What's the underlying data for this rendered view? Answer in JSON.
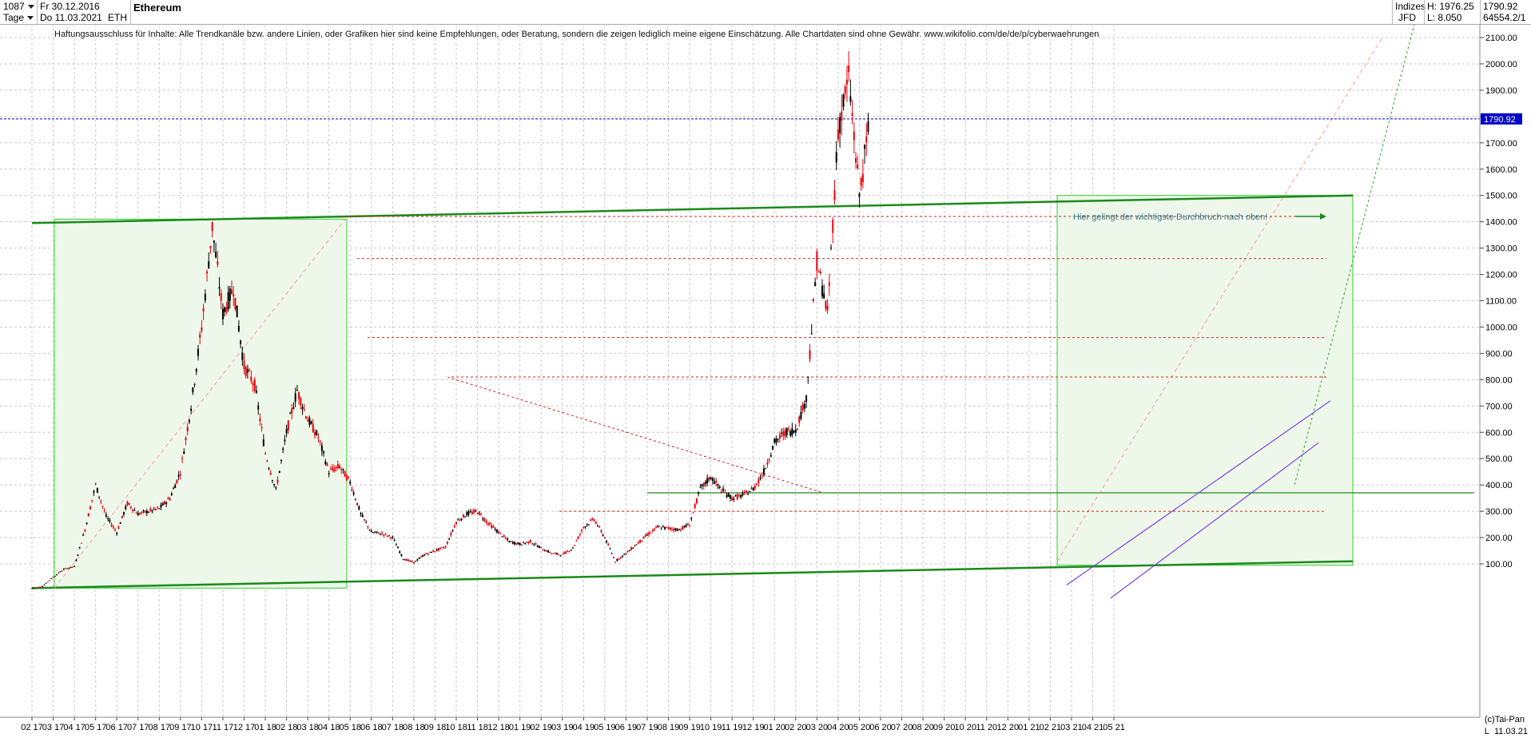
{
  "header": {
    "bar_count": "1087",
    "period": "Tage",
    "date_from": "Fr 30.12.2016",
    "date_to": "Do 11.03.2021",
    "symbol": "ETH",
    "title": "Ethereum",
    "market": "Indizes",
    "source": "JFD",
    "high_label": "H: 1976.25",
    "low_label": "L: 8.050",
    "last_value": "1790.92",
    "extra_value": "64554.2/1"
  },
  "disclaimer": "Haftungsausschluss für Inhalte: Alle Trendkanäle bzw. andere Linien, oder Grafiken hier sind keine Empfehlungen, oder Beratung, sondern die zeigen lediglich meine eigene Einschätzung. Alle Chartdaten sind ohne Gewähr.  www.wikifolio.com/de/de/p/cyberwaehrungen",
  "annotation": "Hier gelingt der wichtigste Durchbruch nach oben!",
  "watermark": "(c)Tai-Pan",
  "last_date_label": "11.03.21",
  "axis_end_label": "L",
  "colors": {
    "candle_up": "#000000",
    "candle_down": "#e8000b",
    "trend_green": "#1a8a1a",
    "support_red": "#d42020",
    "price_line": "#0000cc",
    "channel_purple": "#7b3fe0",
    "box_fill": "#eef8ea"
  },
  "chart_data": {
    "type": "candlestick",
    "title": "Ethereum",
    "ylim": [
      0,
      2150
    ],
    "y_ticks": [
      100,
      200,
      300,
      400,
      500,
      600,
      700,
      800,
      900,
      1000,
      1100,
      1200,
      1300,
      1400,
      1500,
      1600,
      1700,
      1800,
      1900,
      2000,
      2100
    ],
    "y_tick_labels": [
      "100.00",
      "200.00",
      "300.00",
      "400.00",
      "500.00",
      "600.00",
      "700.00",
      "800.00",
      "900.00",
      "1000.00",
      "1100.00",
      "1200.00",
      "1300.00",
      "1400.00",
      "1500.00",
      "1600.00",
      "1700.00",
      "1800.00",
      "1900.00",
      "2000.00",
      "2100.00"
    ],
    "last_price": 1790.92,
    "last_price_label": "1790.92",
    "x_ticks": [
      "02 17",
      "03 17",
      "04 17",
      "05 17",
      "06 17",
      "07 17",
      "08 17",
      "09 17",
      "10 17",
      "11 17",
      "12 17",
      "01 18",
      "02 18",
      "03 18",
      "04 18",
      "05 18",
      "06 18",
      "07 18",
      "08 18",
      "09 18",
      "10 18",
      "11 18",
      "12 18",
      "01 19",
      "02 19",
      "03 19",
      "04 19",
      "05 19",
      "06 19",
      "07 19",
      "08 19",
      "09 19",
      "10 19",
      "11 19",
      "12 19",
      "01 20",
      "02 20",
      "03 20",
      "04 20",
      "05 20",
      "06 20",
      "07 20",
      "08 20",
      "09 20",
      "10 20",
      "11 20",
      "12 20",
      "01 21",
      "02 21",
      "03 21",
      "04 21",
      "05 21"
    ],
    "price_path": [
      [
        0,
        8
      ],
      [
        1,
        15
      ],
      [
        2,
        50
      ],
      [
        3,
        80
      ],
      [
        4,
        90
      ],
      [
        5,
        230
      ],
      [
        6,
        400
      ],
      [
        7,
        280
      ],
      [
        8,
        220
      ],
      [
        9,
        330
      ],
      [
        10,
        290
      ],
      [
        11,
        300
      ],
      [
        12,
        310
      ],
      [
        13,
        350
      ],
      [
        14,
        450
      ],
      [
        15,
        700
      ],
      [
        16,
        1000
      ],
      [
        17,
        1380
      ],
      [
        18,
        1050
      ],
      [
        19,
        1150
      ],
      [
        20,
        850
      ],
      [
        21,
        780
      ],
      [
        22,
        520
      ],
      [
        23,
        380
      ],
      [
        24,
        600
      ],
      [
        25,
        760
      ],
      [
        26,
        650
      ],
      [
        27,
        580
      ],
      [
        28,
        450
      ],
      [
        29,
        470
      ],
      [
        30,
        410
      ],
      [
        31,
        290
      ],
      [
        32,
        220
      ],
      [
        33,
        215
      ],
      [
        34,
        200
      ],
      [
        35,
        120
      ],
      [
        36,
        105
      ],
      [
        37,
        135
      ],
      [
        38,
        150
      ],
      [
        39,
        165
      ],
      [
        40,
        260
      ],
      [
        41,
        290
      ],
      [
        42,
        300
      ],
      [
        43,
        255
      ],
      [
        44,
        220
      ],
      [
        45,
        185
      ],
      [
        46,
        175
      ],
      [
        47,
        185
      ],
      [
        48,
        160
      ],
      [
        49,
        140
      ],
      [
        50,
        135
      ],
      [
        51,
        160
      ],
      [
        52,
        240
      ],
      [
        53,
        270
      ],
      [
        54,
        200
      ],
      [
        55,
        110
      ],
      [
        56,
        140
      ],
      [
        57,
        175
      ],
      [
        58,
        210
      ],
      [
        59,
        240
      ],
      [
        60,
        235
      ],
      [
        61,
        230
      ],
      [
        62,
        250
      ],
      [
        63,
        385
      ],
      [
        64,
        430
      ],
      [
        65,
        380
      ],
      [
        66,
        350
      ],
      [
        67,
        360
      ],
      [
        68,
        385
      ],
      [
        69,
        450
      ],
      [
        70,
        560
      ],
      [
        71,
        600
      ],
      [
        72,
        610
      ],
      [
        73,
        730
      ],
      [
        74,
        1250
      ],
      [
        75,
        1050
      ],
      [
        76,
        1750
      ],
      [
        77,
        1950
      ],
      [
        78,
        1500
      ],
      [
        79,
        1790
      ]
    ],
    "price_path_x_unit": "half-month steps from 30.12.2016",
    "annotation_level": 1420,
    "breakout_level": 1420
  }
}
